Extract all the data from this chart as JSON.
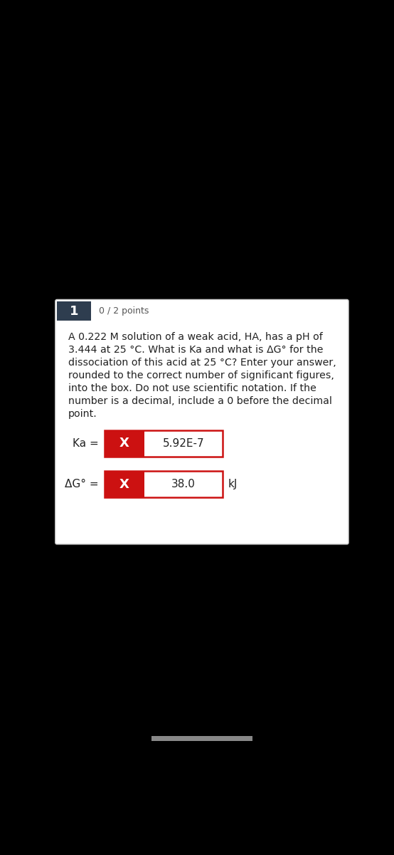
{
  "background_black": "#000000",
  "background_white": "#ffffff",
  "card_border": "#cccccc",
  "header_bg": "#2e3d4f",
  "header_text": "1",
  "header_text_color": "#ffffff",
  "points_text": "0 / 2 points",
  "points_color": "#555555",
  "question_line1": "A 0.222 M solution of a weak acid, HA, has a pH of",
  "question_line2": "3.444 at 25 °C. What is Ka and what is ΔG° for the",
  "question_line3": "dissociation of this acid at 25 °C? Enter your answer,",
  "question_line4": "rounded to the correct number of significant figures,",
  "question_line5": "into the box. Do not use scientific notation. If the",
  "question_line6": "number is a decimal, include a 0 before the decimal",
  "question_line7": "point.",
  "question_color": "#222222",
  "red_box_color": "#cc1111",
  "white_box_color": "#ffffff",
  "x_mark": "X",
  "x_color": "#ffffff",
  "ka_label": "Ka =",
  "ka_value": "5.92E-7",
  "delta_g_label": "ΔG° =",
  "delta_g_value": "38.0",
  "kj_label": "kJ",
  "text_color": "#222222",
  "scroll_bar_color": "#888888"
}
